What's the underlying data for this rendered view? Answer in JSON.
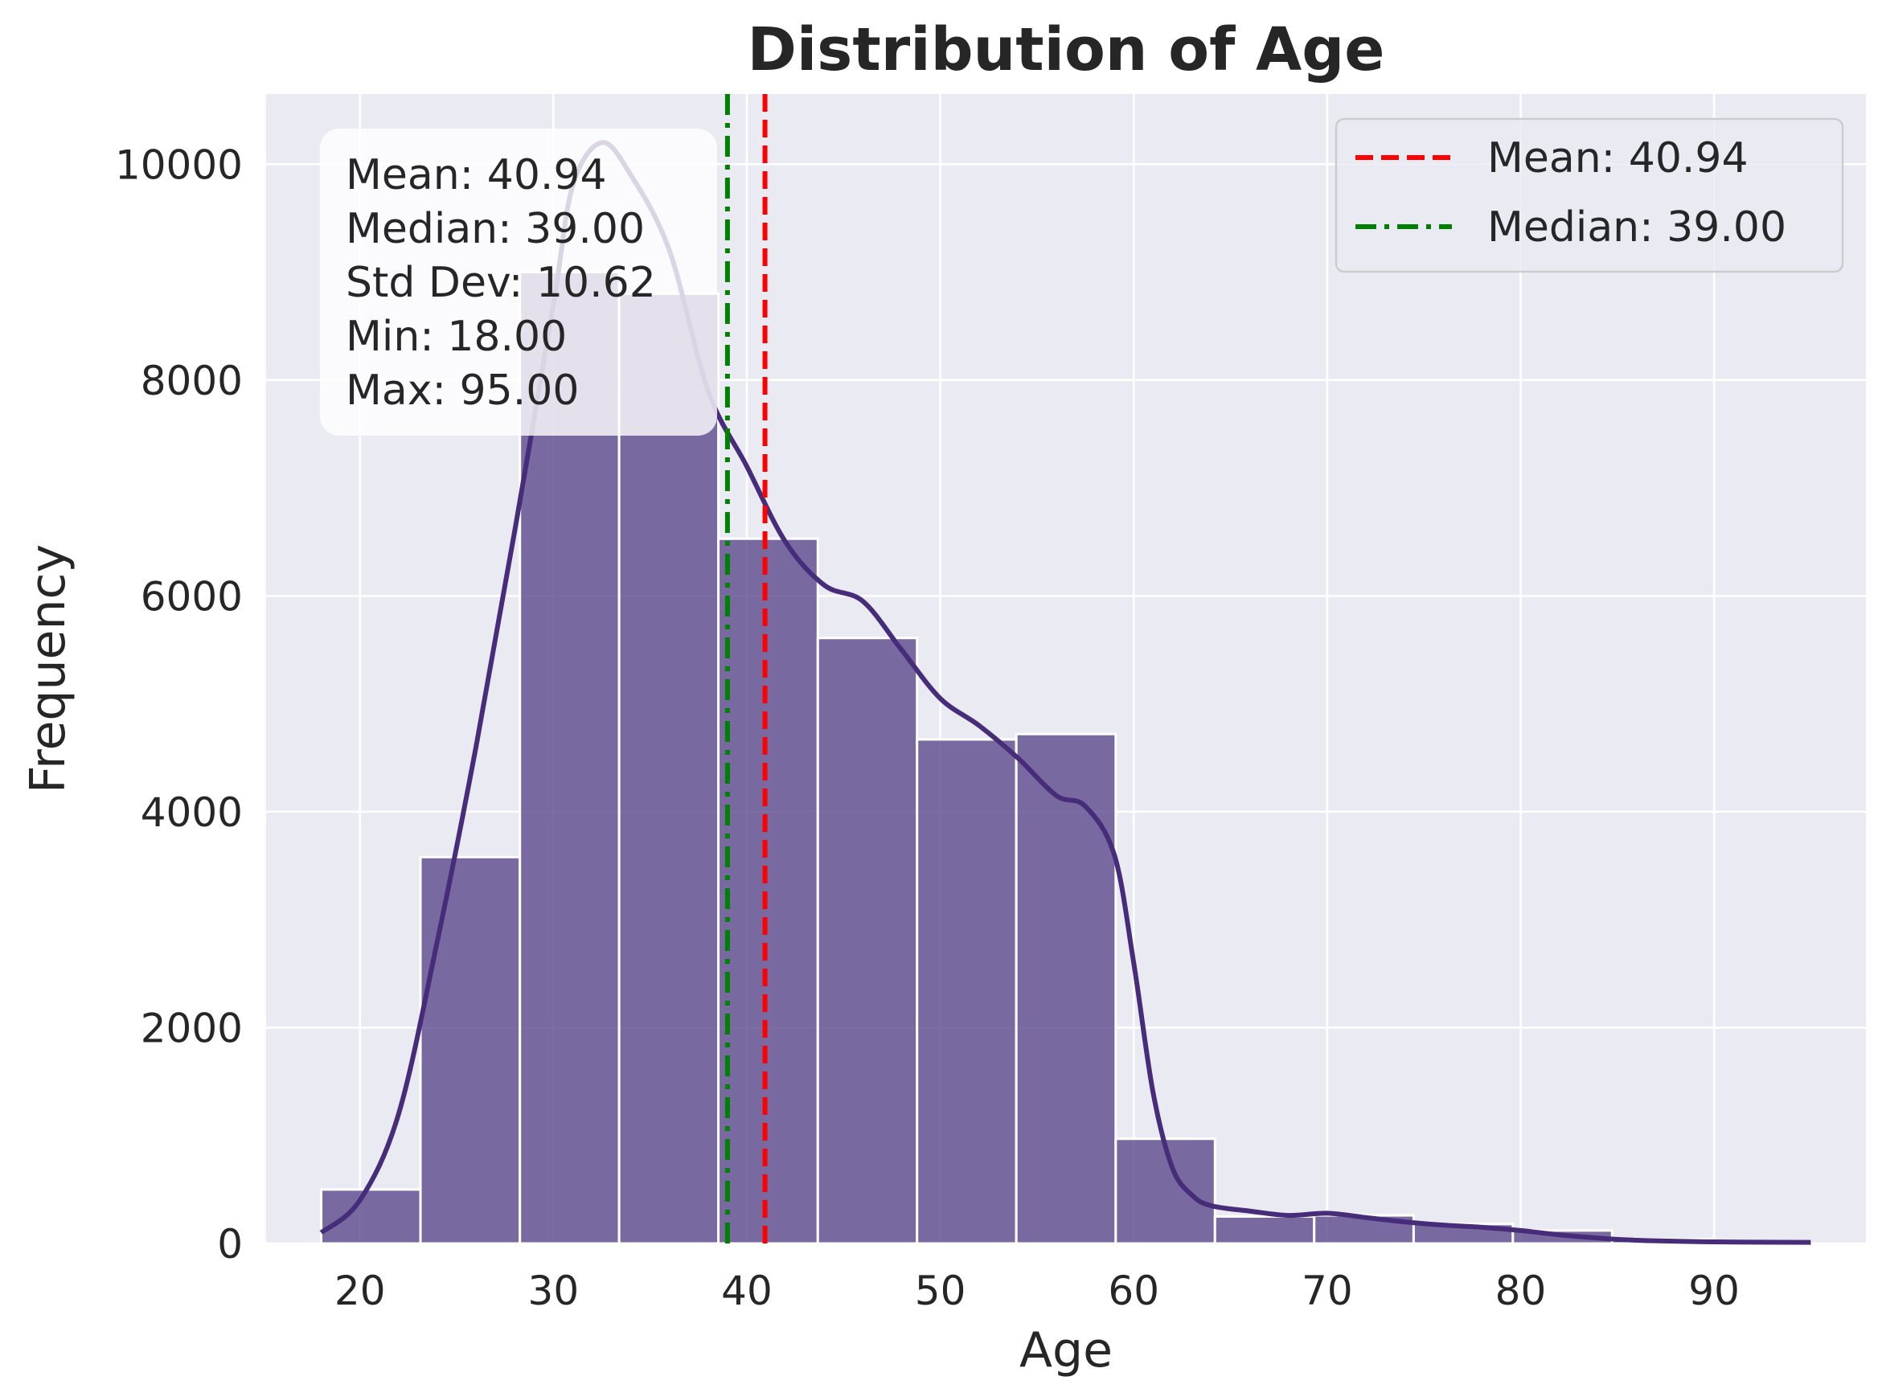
{
  "chart_data": {
    "type": "bar",
    "title": "Distribution of Age",
    "xlabel": "Age",
    "ylabel": "Frequency",
    "xlim": [
      15.15,
      97.85
    ],
    "ylim": [
      0,
      10650
    ],
    "grid": true,
    "x_ticks": [
      20,
      30,
      40,
      50,
      60,
      70,
      80,
      90
    ],
    "y_ticks": [
      0,
      2000,
      4000,
      6000,
      8000,
      10000
    ],
    "bin_edges": [
      18,
      23.13,
      28.27,
      33.4,
      38.53,
      43.67,
      48.8,
      53.93,
      59.07,
      64.2,
      69.33,
      74.47,
      79.6,
      84.73,
      89.87,
      95
    ],
    "counts": [
      500,
      3580,
      9000,
      8800,
      6530,
      5610,
      4670,
      4720,
      970,
      250,
      260,
      180,
      120,
      40,
      20
    ],
    "colors": {
      "bars": "#5b4a8b",
      "kde": "#472c7a",
      "mean": "#ff0000",
      "median": "#008000",
      "background": "#eaeaf2"
    },
    "kde": {
      "x": [
        18,
        20,
        22,
        24,
        26,
        28,
        30,
        31,
        32.5,
        34,
        36,
        38,
        40,
        42,
        44,
        46,
        48,
        50,
        52,
        54,
        56,
        57.5,
        59,
        60,
        61,
        62,
        63,
        64,
        66,
        68,
        70,
        72,
        74,
        76,
        78,
        80,
        82,
        84,
        86,
        90,
        95
      ],
      "y": [
        100,
        400,
        1200,
        2800,
        4600,
        6600,
        8700,
        9800,
        10200,
        9900,
        9200,
        7900,
        7200,
        6500,
        6100,
        5950,
        5500,
        5050,
        4800,
        4500,
        4150,
        4050,
        3600,
        2600,
        1400,
        700,
        450,
        350,
        300,
        260,
        280,
        240,
        200,
        170,
        150,
        120,
        80,
        50,
        30,
        15,
        10
      ]
    },
    "mean": 40.94,
    "median": 39.0,
    "stats_box": [
      "Mean: 40.94",
      "Median: 39.00",
      "Std Dev: 10.62",
      "Min: 18.00",
      "Max: 95.00"
    ],
    "legend": {
      "placement": "top-right",
      "entries": [
        {
          "label": "Mean: 40.94",
          "style": "dashed",
          "color": "#ff0000"
        },
        {
          "label": "Median: 39.00",
          "style": "dashdot",
          "color": "#008000"
        }
      ]
    }
  }
}
